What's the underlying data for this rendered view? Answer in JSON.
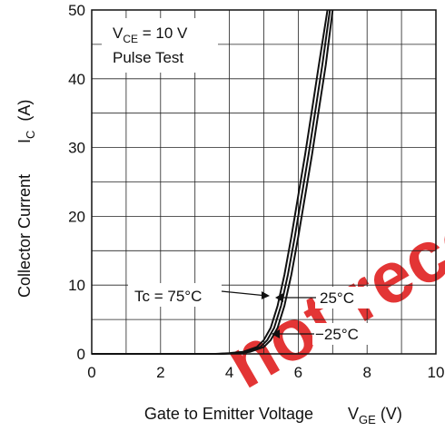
{
  "chart_data": {
    "type": "line",
    "xlabel": "Gate to Emitter Voltage",
    "xlabel_symbol": "V",
    "xlabel_sub": "GE",
    "xlabel_unit": "(V)",
    "ylabel": "Collector Current",
    "ylabel_symbol": "I",
    "ylabel_sub": "C",
    "ylabel_unit": "(A)",
    "xlim": [
      0,
      10
    ],
    "ylim": [
      0,
      50
    ],
    "x_ticks": [
      "0",
      "2",
      "4",
      "6",
      "8",
      "10"
    ],
    "y_ticks": [
      "0",
      "10",
      "20",
      "30",
      "40",
      "50"
    ],
    "grid": true,
    "conditions": {
      "line1_symbol": "V",
      "line1_sub": "CE",
      "line1_rest": " = 10 V",
      "line2": "Pulse Test"
    },
    "series": [
      {
        "name": "Tc = 75°C",
        "x": [
          3.6,
          4.0,
          4.4,
          4.8,
          5.0,
          5.2,
          5.4,
          5.6,
          5.8,
          6.0,
          6.2,
          6.4,
          6.6,
          6.85
        ],
        "y": [
          0,
          0.1,
          0.3,
          1.0,
          2.0,
          3.8,
          7.0,
          11.5,
          17.0,
          23.0,
          29.0,
          35.5,
          42.0,
          50
        ]
      },
      {
        "name": "25°C",
        "x": [
          3.7,
          4.1,
          4.5,
          4.9,
          5.1,
          5.3,
          5.5,
          5.7,
          5.9,
          6.1,
          6.3,
          6.5,
          6.7,
          6.92
        ],
        "y": [
          0,
          0.1,
          0.3,
          1.0,
          2.0,
          3.8,
          7.0,
          11.5,
          17.0,
          23.0,
          29.0,
          35.5,
          42.0,
          50
        ]
      },
      {
        "name": "−25°C",
        "x": [
          3.8,
          4.2,
          4.6,
          5.0,
          5.2,
          5.4,
          5.6,
          5.8,
          6.0,
          6.2,
          6.4,
          6.6,
          6.8,
          7.0
        ],
        "y": [
          0,
          0.1,
          0.3,
          1.0,
          2.0,
          3.8,
          7.0,
          11.5,
          17.0,
          23.0,
          29.0,
          35.5,
          42.0,
          50
        ]
      }
    ],
    "annotations": [
      "Tc = 75°C",
      "25°C",
      "−25°C"
    ]
  },
  "watermark": "not recommended"
}
